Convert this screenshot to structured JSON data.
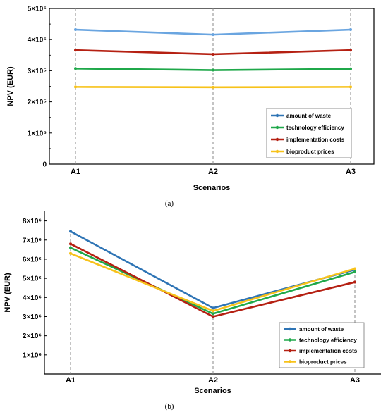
{
  "chart_data": [
    {
      "type": "line",
      "caption": "(a)",
      "xlabel": "Scenarios",
      "ylabel": "NPV (EUR)",
      "categories": [
        "A1",
        "A2",
        "A3"
      ],
      "ylim": [
        0,
        500000
      ],
      "ytick_labels": [
        "0",
        "1×10⁵",
        "2×10⁵",
        "3×10⁵",
        "4×10⁵",
        "5×10⁵"
      ],
      "legend_position": "lower-right",
      "series": [
        {
          "name": "amount of waste",
          "color": "#6aa5e0",
          "legend_color": "#2e74b5",
          "values": [
            432000,
            416000,
            432000
          ]
        },
        {
          "name": "technology efficiency",
          "color": "#1fa84a",
          "values": [
            307000,
            302000,
            306000
          ]
        },
        {
          "name": "implementation costs",
          "color": "#b52012",
          "values": [
            366000,
            353000,
            366000
          ]
        },
        {
          "name": "bioproduct prices",
          "color": "#f7c21a",
          "values": [
            248000,
            247000,
            248000
          ]
        }
      ]
    },
    {
      "type": "line",
      "caption": "(b)",
      "xlabel": "Scenarios",
      "ylabel": "NPV (EUR)",
      "categories": [
        "A1",
        "A2",
        "A3"
      ],
      "ylim": [
        0,
        8500000
      ],
      "ytick_labels": [
        "1×10⁶",
        "2×10⁶",
        "3×10⁶",
        "4×10⁶",
        "5×10⁶",
        "6×10⁶",
        "7×10⁶",
        "8×10⁶"
      ],
      "legend_position": "lower-right",
      "series": [
        {
          "name": "amount of waste",
          "color": "#2e74b5",
          "values": [
            7450000,
            3450000,
            5450000
          ]
        },
        {
          "name": "technology efficiency",
          "color": "#1fa84a",
          "values": [
            6600000,
            3150000,
            5330000
          ]
        },
        {
          "name": "implementation costs",
          "color": "#b52012",
          "values": [
            6800000,
            3000000,
            4800000
          ]
        },
        {
          "name": "bioproduct prices",
          "color": "#f7c21a",
          "values": [
            6300000,
            3300000,
            5500000
          ]
        }
      ]
    }
  ]
}
